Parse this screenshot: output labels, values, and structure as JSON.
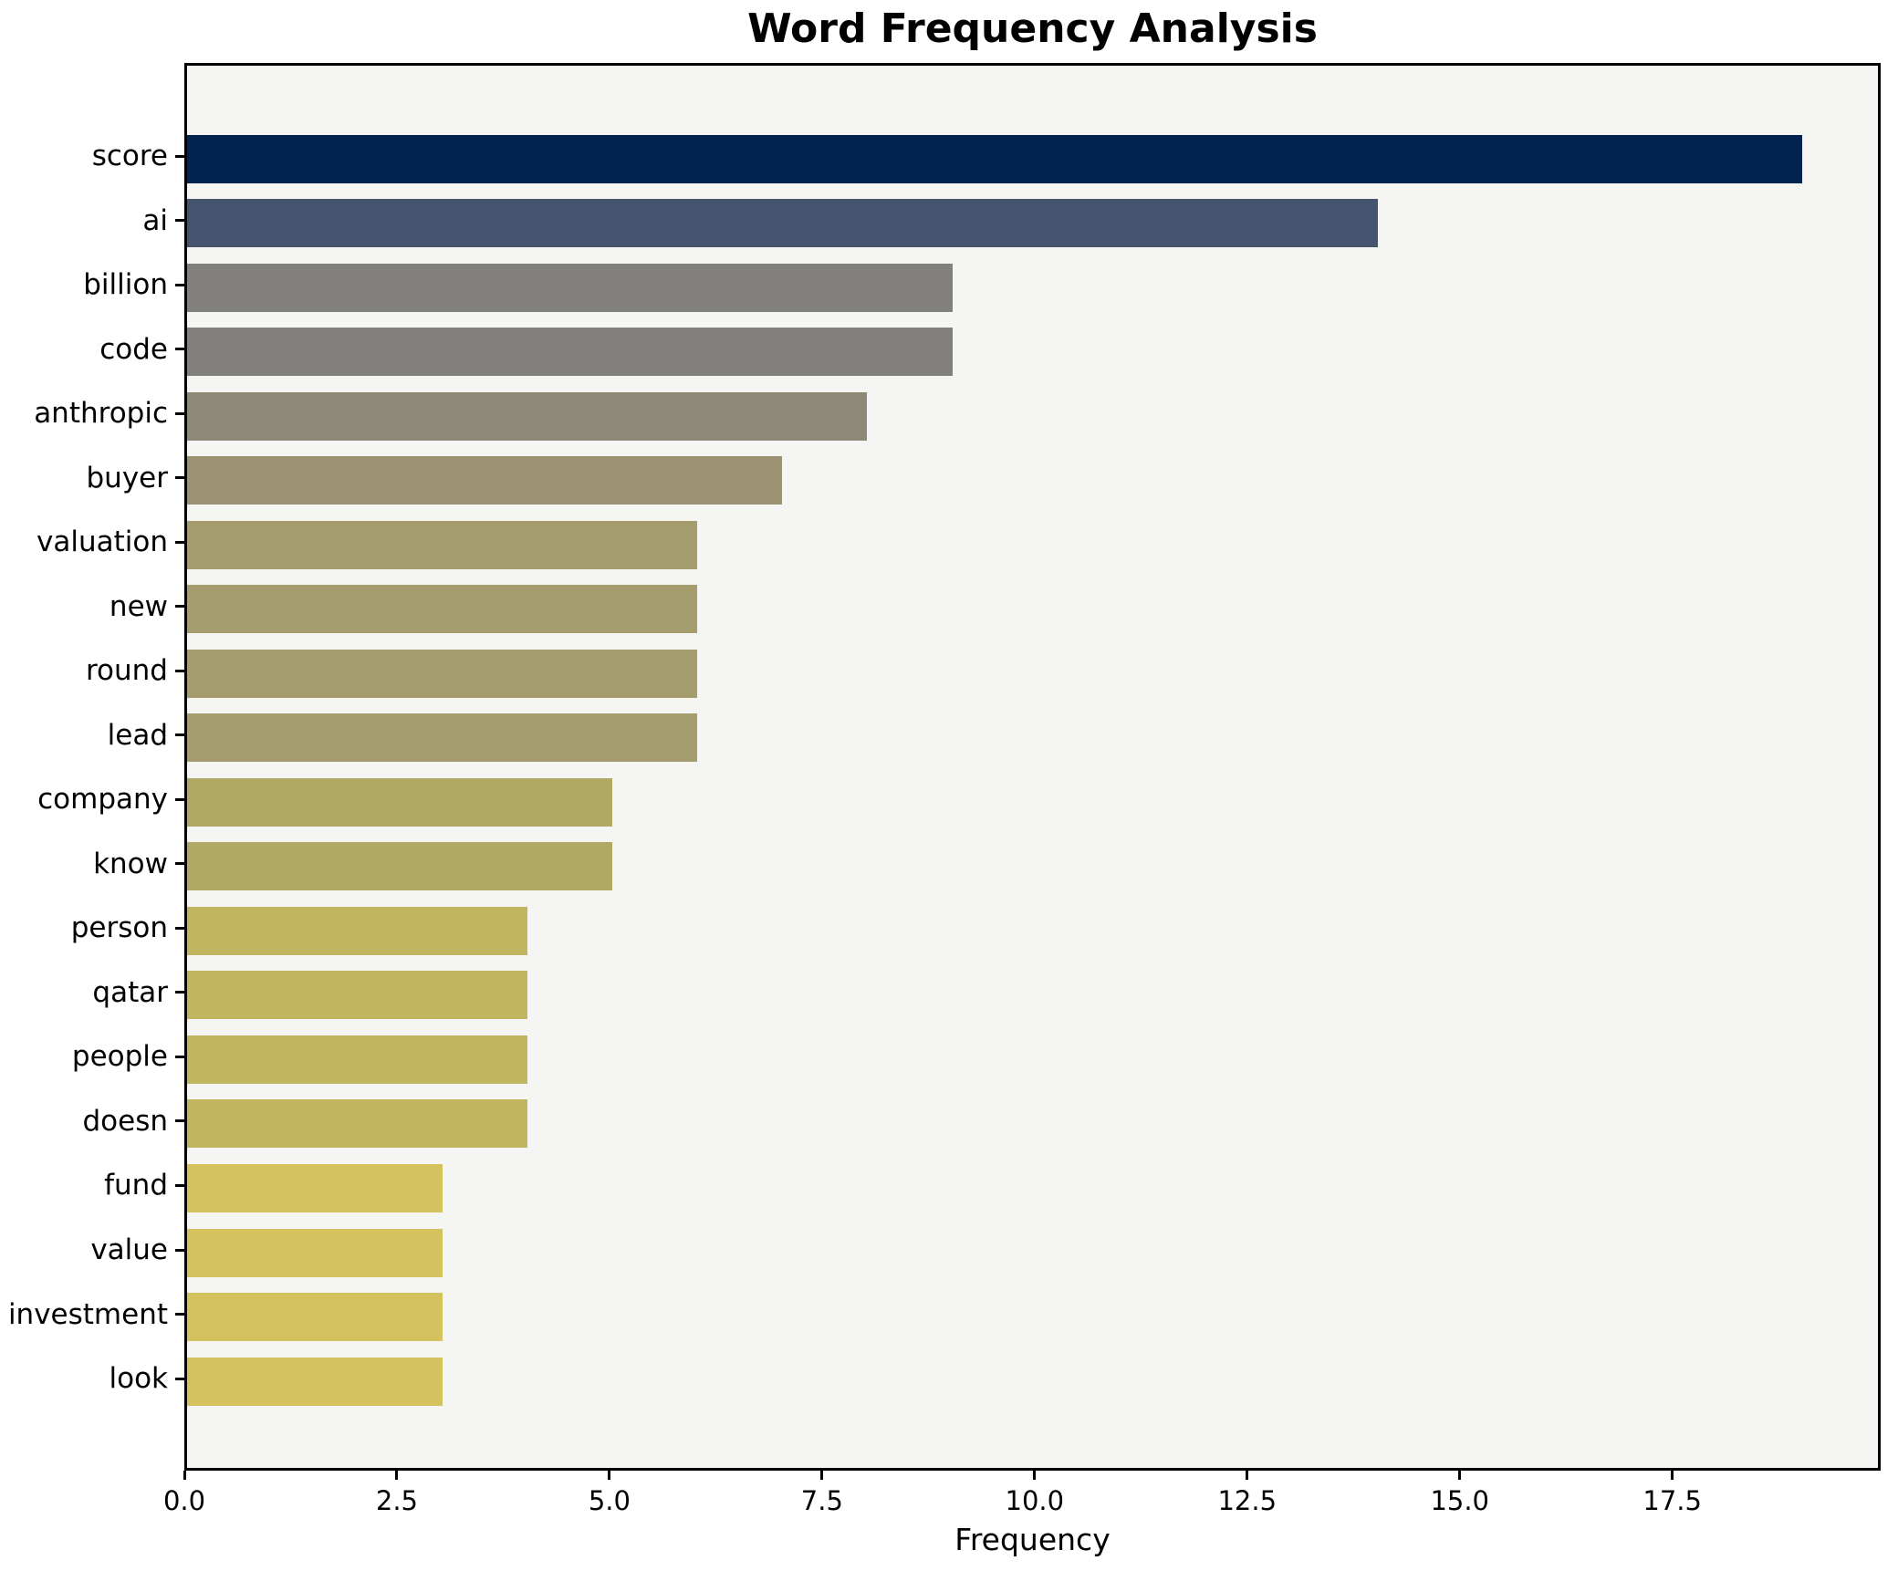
{
  "title": "Word Frequency Analysis",
  "xlabel": "Frequency",
  "chart_data": {
    "type": "bar",
    "orientation": "horizontal",
    "title": "Word Frequency Analysis",
    "xlabel": "Frequency",
    "ylabel": "",
    "categories": [
      "score",
      "ai",
      "billion",
      "code",
      "anthropic",
      "buyer",
      "valuation",
      "new",
      "round",
      "lead",
      "company",
      "know",
      "person",
      "qatar",
      "people",
      "doesn",
      "fund",
      "value",
      "investment",
      "look"
    ],
    "values": [
      19,
      14,
      9,
      9,
      8,
      7,
      6,
      6,
      6,
      6,
      5,
      5,
      4,
      4,
      4,
      4,
      3,
      3,
      3,
      3
    ],
    "bar_colors": [
      "#022350",
      "#475470",
      "#81807c",
      "#81807c",
      "#8e8877",
      "#9a9273",
      "#a59d6e",
      "#a59d6e",
      "#a59d6e",
      "#a59d6e",
      "#b1a866",
      "#b1a866",
      "#c2b560",
      "#c2b560",
      "#c2b560",
      "#c2b560",
      "#d3c25e",
      "#d3c25e",
      "#d3c25e",
      "#d3c25e"
    ],
    "xlim": [
      0,
      19.95
    ],
    "x_ticks": [
      0.0,
      2.5,
      5.0,
      7.5,
      10.0,
      12.5,
      15.0,
      17.5
    ],
    "x_tick_labels": [
      "0.0",
      "2.5",
      "5.0",
      "7.5",
      "10.0",
      "12.5",
      "15.0",
      "17.5"
    ],
    "grid": false,
    "legend": null,
    "plot_bg": "#f5f5f3",
    "figure_bg": "#ffffff",
    "spine_color": "#000000",
    "colormap_note": "cividis, darkest = highest frequency"
  }
}
